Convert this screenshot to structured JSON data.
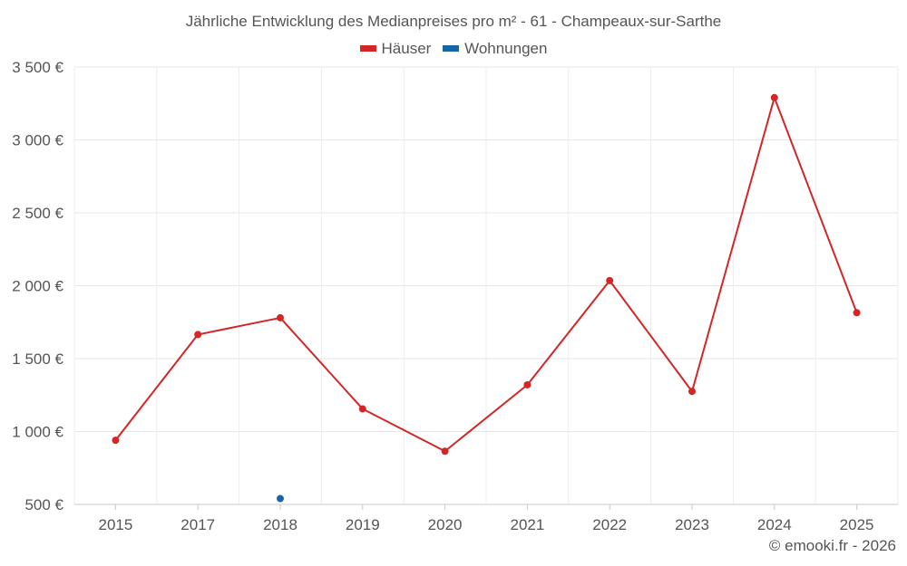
{
  "chart_data": {
    "type": "line",
    "title": "Jährliche Entwicklung des Medianpreises pro m² - 61 - Champeaux-sur-Sarthe",
    "categories": [
      "2015",
      "2017",
      "2018",
      "2019",
      "2020",
      "2021",
      "2022",
      "2023",
      "2024",
      "2025"
    ],
    "series": [
      {
        "name": "Häuser",
        "color": "#d32626",
        "values": [
          940,
          1665,
          1780,
          1155,
          865,
          1320,
          2035,
          1275,
          3290,
          1815
        ]
      },
      {
        "name": "Wohnungen",
        "color": "#1565a8",
        "values": [
          null,
          null,
          540,
          null,
          null,
          null,
          null,
          null,
          null,
          null
        ]
      }
    ],
    "ylim": [
      500,
      3500
    ],
    "yticks": [
      3500,
      3000,
      2500,
      2000,
      1500,
      1000,
      500
    ],
    "ytick_labels": [
      "3 500 €",
      "3 000 €",
      "2 500 €",
      "2 000 €",
      "1 500 €",
      "1 000 €",
      "500 €"
    ],
    "xlabel": "",
    "ylabel": "",
    "grid": true,
    "legend": "top-center"
  },
  "credit": "© emooki.fr - 2026"
}
